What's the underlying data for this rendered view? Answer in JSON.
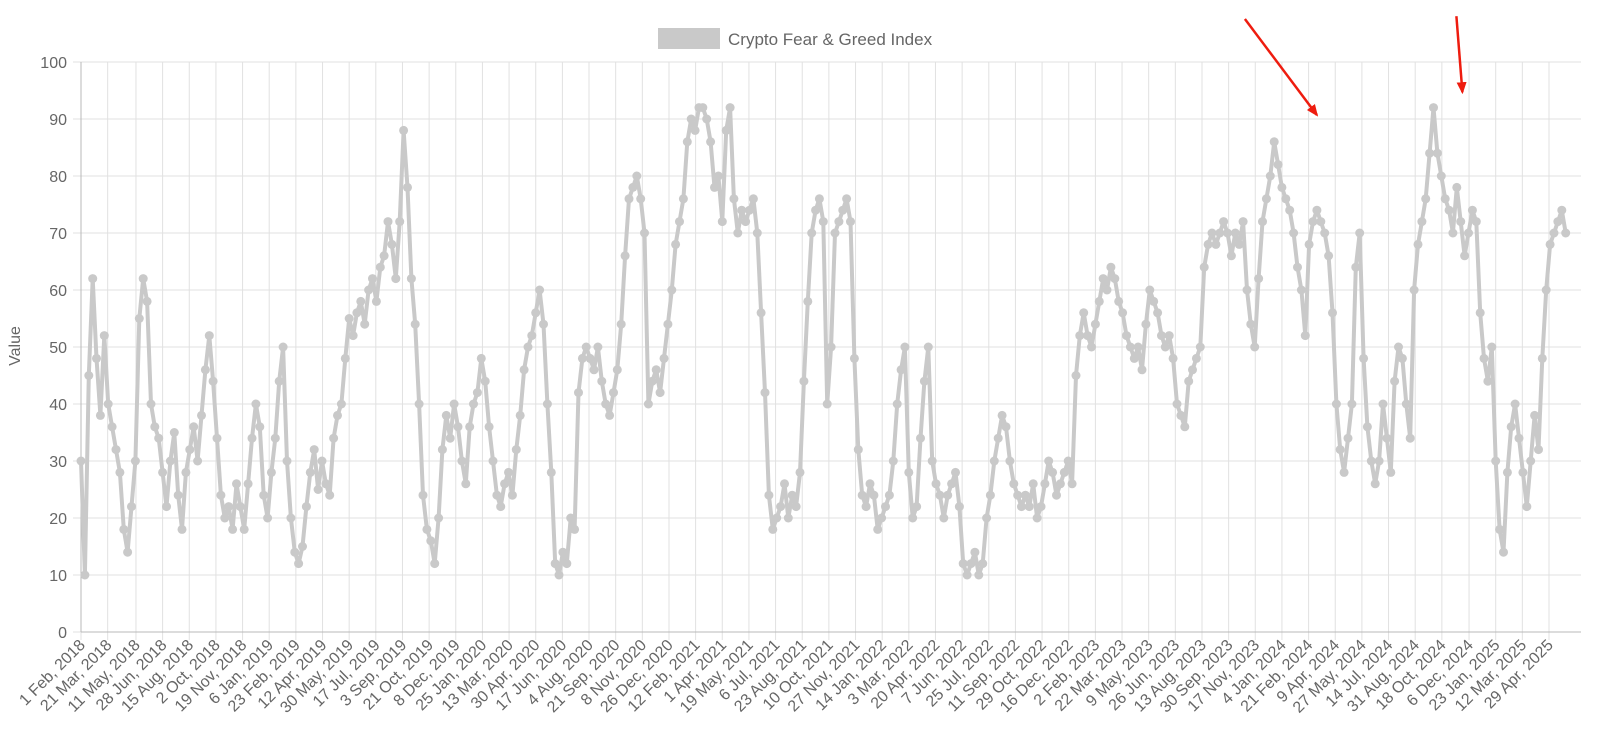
{
  "chart_data": {
    "type": "line",
    "legend": {
      "label": "Crypto Fear & Greed Index",
      "position": "top-center",
      "color": "#c9c9c9"
    },
    "ylabel": "Value",
    "xlabel": "",
    "ylim": [
      0,
      100
    ],
    "y_ticks": [
      0,
      10,
      20,
      30,
      40,
      50,
      60,
      70,
      80,
      90,
      100
    ],
    "grid": true,
    "series_color": "#c9c9c9",
    "annotation_color": "#ee1c0f",
    "x_tick_labels": [
      "1 Feb, 2018",
      "21 Mar, 2018",
      "11 May, 2018",
      "28 Jun, 2018",
      "15 Aug, 2018",
      "2 Oct, 2018",
      "19 Nov, 2018",
      "6 Jan, 2019",
      "23 Feb, 2019",
      "12 Apr, 2019",
      "30 May, 2019",
      "17 Jul, 2019",
      "3 Sep, 2019",
      "21 Oct, 2019",
      "8 Dec, 2019",
      "25 Jan, 2020",
      "13 Mar, 2020",
      "30 Apr, 2020",
      "17 Jun, 2020",
      "4 Aug, 2020",
      "21 Sep, 2020",
      "8 Nov, 2020",
      "26 Dec, 2020",
      "12 Feb, 2021",
      "1 Apr, 2021",
      "19 May, 2021",
      "6 Jul, 2021",
      "23 Aug, 2021",
      "10 Oct, 2021",
      "27 Nov, 2021",
      "14 Jan, 2022",
      "3 Mar, 2022",
      "20 Apr, 2022",
      "7 Jun, 2022",
      "25 Jul, 2022",
      "11 Sep, 2022",
      "29 Oct, 2022",
      "16 Dec, 2022",
      "2 Feb, 2023",
      "22 Mar, 2023",
      "9 May, 2023",
      "26 Jun, 2023",
      "13 Aug, 2023",
      "30 Sep, 2023",
      "17 Nov, 2023",
      "4 Jan, 2024",
      "21 Feb, 2024",
      "9 Apr, 2024",
      "27 May, 2024",
      "14 Jul, 2024",
      "31 Aug, 2024",
      "18 Oct, 2024",
      "6 Dec, 2024",
      "23 Jan, 2025",
      "12 Mar, 2025",
      "29 Apr, 2025"
    ],
    "series": [
      {
        "name": "Crypto Fear & Greed Index",
        "x_start": "1 Feb, 2018",
        "step_days": 7,
        "values": [
          30,
          10,
          45,
          62,
          48,
          38,
          52,
          40,
          36,
          32,
          28,
          18,
          14,
          22,
          30,
          55,
          62,
          58,
          40,
          36,
          34,
          28,
          22,
          30,
          35,
          24,
          18,
          28,
          32,
          36,
          30,
          38,
          46,
          52,
          44,
          34,
          24,
          20,
          22,
          18,
          26,
          22,
          18,
          26,
          34,
          40,
          36,
          24,
          20,
          28,
          34,
          44,
          50,
          30,
          20,
          14,
          12,
          15,
          22,
          28,
          32,
          25,
          30,
          26,
          24,
          34,
          38,
          40,
          48,
          55,
          52,
          56,
          58,
          54,
          60,
          62,
          58,
          64,
          66,
          72,
          68,
          62,
          72,
          88,
          78,
          62,
          54,
          40,
          24,
          18,
          16,
          12,
          20,
          32,
          38,
          34,
          40,
          36,
          30,
          26,
          36,
          40,
          42,
          48,
          44,
          36,
          30,
          24,
          22,
          26,
          28,
          24,
          32,
          38,
          46,
          50,
          52,
          56,
          60,
          54,
          40,
          28,
          12,
          10,
          14,
          12,
          20,
          18,
          42,
          48,
          50,
          48,
          46,
          50,
          44,
          40,
          38,
          42,
          46,
          54,
          66,
          76,
          78,
          80,
          76,
          70,
          40,
          44,
          46,
          42,
          48,
          54,
          60,
          68,
          72,
          76,
          86,
          90,
          88,
          92,
          92,
          90,
          86,
          78,
          80,
          72,
          88,
          92,
          76,
          70,
          74,
          72,
          74,
          76,
          70,
          56,
          42,
          24,
          18,
          20,
          22,
          26,
          20,
          24,
          22,
          28,
          44,
          58,
          70,
          74,
          76,
          72,
          40,
          50,
          70,
          72,
          74,
          76,
          72,
          48,
          32,
          24,
          22,
          26,
          24,
          18,
          20,
          22,
          24,
          30,
          40,
          46,
          50,
          28,
          20,
          22,
          34,
          44,
          50,
          30,
          26,
          24,
          20,
          24,
          26,
          28,
          22,
          12,
          10,
          12,
          14,
          10,
          12,
          20,
          24,
          30,
          34,
          38,
          36,
          30,
          26,
          24,
          22,
          24,
          22,
          26,
          20,
          22,
          26,
          30,
          28,
          24,
          26,
          28,
          30,
          26,
          45,
          52,
          56,
          52,
          50,
          54,
          58,
          62,
          60,
          64,
          62,
          58,
          56,
          52,
          50,
          48,
          50,
          46,
          54,
          60,
          58,
          56,
          52,
          50,
          52,
          48,
          40,
          38,
          36,
          44,
          46,
          48,
          50,
          64,
          68,
          70,
          68,
          70,
          72,
          70,
          66,
          70,
          68,
          72,
          60,
          54,
          50,
          62,
          72,
          76,
          80,
          86,
          82,
          78,
          76,
          74,
          70,
          64,
          60,
          52,
          68,
          72,
          74,
          72,
          70,
          66,
          56,
          40,
          32,
          28,
          34,
          40,
          64,
          70,
          48,
          36,
          30,
          26,
          30,
          40,
          34,
          28,
          44,
          50,
          48,
          40,
          34,
          60,
          68,
          72,
          76,
          84,
          92,
          84,
          80,
          76,
          74,
          70,
          78,
          72,
          66,
          70,
          74,
          72,
          56,
          48,
          44,
          50,
          30,
          18,
          14,
          28,
          36,
          40,
          34,
          28,
          22,
          30,
          38,
          32,
          48,
          60,
          68,
          70,
          72,
          74,
          70
        ]
      }
    ],
    "annotations": [
      {
        "type": "arrow",
        "points_to": {
          "x": "7 Mar, 2024",
          "y": 90
        }
      },
      {
        "type": "arrow",
        "points_to": {
          "x": "24 Nov, 2024",
          "y": 94
        }
      }
    ]
  }
}
